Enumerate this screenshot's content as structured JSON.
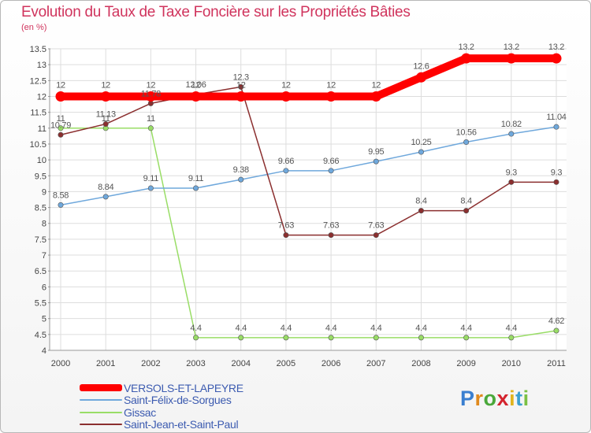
{
  "chart_data": {
    "type": "line",
    "title": "Evolution du Taux de Taxe Foncière sur les Propriétés Bâties",
    "ylabel": "(en %)",
    "xlabel": "",
    "x": [
      "2000",
      "2001",
      "2002",
      "2003",
      "2004",
      "2005",
      "2006",
      "2007",
      "2008",
      "2009",
      "2010",
      "2011"
    ],
    "ylim": [
      4,
      13.5
    ],
    "yticks": [
      "4",
      "4.5",
      "5",
      "5.5",
      "6",
      "6.5",
      "7",
      "7.5",
      "8",
      "8.5",
      "9",
      "9.5",
      "10",
      "10.5",
      "11",
      "11.5",
      "12",
      "12.5",
      "13",
      "13.5"
    ],
    "grid": true,
    "legend_position": "bottom-left",
    "series": [
      {
        "name": "VERSOLS-ET-LAPEYRE",
        "color": "#ff0000",
        "values": [
          12,
          12,
          12,
          12,
          12,
          12,
          12,
          12,
          12.6,
          13.2,
          13.2,
          13.2
        ],
        "labels": [
          "12",
          "12",
          "12",
          "12",
          "12",
          "12",
          "12",
          "12",
          "12.6",
          "13.2",
          "13.2",
          "13.2"
        ]
      },
      {
        "name": "Saint-Félix-de-Sorgues",
        "color": "#6fa8dc",
        "values": [
          8.58,
          8.84,
          9.11,
          9.11,
          9.38,
          9.66,
          9.66,
          9.95,
          10.25,
          10.56,
          10.82,
          11.04
        ],
        "labels": [
          "8.58",
          "8.84",
          "9.11",
          "9.11",
          "9.38",
          "9.66",
          "9.66",
          "9.95",
          "10.25",
          "10.56",
          "10.82",
          "11.04"
        ]
      },
      {
        "name": "Gissac",
        "color": "#99dd66",
        "values": [
          11,
          11,
          11,
          4.4,
          4.4,
          4.4,
          4.4,
          4.4,
          4.4,
          4.4,
          4.4,
          4.62
        ],
        "labels": [
          "11",
          "11",
          "11",
          "4.4",
          "4.4",
          "4.4",
          "4.4",
          "4.4",
          "4.4",
          "4.4",
          "4.4",
          "4.62"
        ]
      },
      {
        "name": "Saint-Jean-et-Saint-Paul",
        "color": "#8b2f2f",
        "values": [
          10.79,
          11.13,
          11.78,
          12.06,
          12.3,
          7.63,
          7.63,
          7.63,
          8.4,
          8.4,
          9.3,
          9.3
        ],
        "labels": [
          "10.79",
          "11.13",
          "11.78",
          "12.06",
          "12.3",
          "7.63",
          "7.63",
          "7.63",
          "8.4",
          "8.4",
          "9.3",
          "9.3"
        ]
      }
    ]
  },
  "logo": {
    "letters": [
      "P",
      "r",
      "o",
      "x",
      "i",
      "t",
      "i"
    ],
    "colors": [
      "#3a7fd0",
      "#e08a1e",
      "#4aa83a",
      "#d4242f",
      "#e0b41e",
      "#3a9fd0",
      "#7bc043"
    ]
  }
}
